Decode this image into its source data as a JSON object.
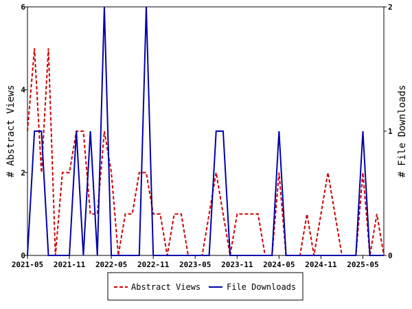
{
  "chart_data": {
    "type": "line",
    "x": [
      "2021-05",
      "2021-06",
      "2021-07",
      "2021-08",
      "2021-09",
      "2021-10",
      "2021-11",
      "2021-12",
      "2022-01",
      "2022-02",
      "2022-03",
      "2022-04",
      "2022-05",
      "2022-06",
      "2022-07",
      "2022-08",
      "2022-09",
      "2022-10",
      "2022-11",
      "2022-12",
      "2023-01",
      "2023-02",
      "2023-03",
      "2023-04",
      "2023-05",
      "2023-06",
      "2023-07",
      "2023-08",
      "2023-09",
      "2023-10",
      "2023-11",
      "2023-12",
      "2024-01",
      "2024-02",
      "2024-03",
      "2024-04",
      "2024-05",
      "2024-06",
      "2024-07",
      "2024-08",
      "2024-09",
      "2024-10",
      "2024-11",
      "2024-12",
      "2025-01",
      "2025-02",
      "2025-03",
      "2025-04",
      "2025-05",
      "2025-06",
      "2025-07",
      "2025-08"
    ],
    "x_ticks": [
      "2021-05",
      "2021-11",
      "2022-05",
      "2022-11",
      "2023-05",
      "2023-11",
      "2024-05",
      "2024-11",
      "2025-05"
    ],
    "ylabel": "# Abstract Views",
    "y2label": "# File Downloads",
    "ylim": [
      0,
      6
    ],
    "y2lim": [
      0,
      2
    ],
    "y_ticks": [
      "0",
      "2",
      "4",
      "6"
    ],
    "y2_ticks": [
      "0",
      "1",
      "2"
    ],
    "series": [
      {
        "name": "Abstract Views",
        "axis": "left",
        "color": "#cc0000",
        "style": "dashed",
        "values": [
          3,
          5,
          2,
          5,
          0,
          2,
          2,
          3,
          3,
          1,
          1,
          3,
          2,
          0,
          1,
          1,
          2,
          2,
          1,
          1,
          0,
          1,
          1,
          0,
          0,
          0,
          1,
          2,
          1,
          0,
          1,
          1,
          1,
          1,
          0,
          0,
          2,
          0,
          0,
          0,
          1,
          0,
          1,
          2,
          1,
          0,
          0,
          0,
          2,
          0,
          1,
          0
        ]
      },
      {
        "name": "File Downloads",
        "axis": "right",
        "color": "#0000aa",
        "style": "solid",
        "values": [
          0,
          1,
          1,
          0,
          0,
          0,
          0,
          1,
          0,
          1,
          0,
          2,
          0,
          0,
          0,
          0,
          0,
          2,
          0,
          0,
          0,
          0,
          0,
          0,
          0,
          0,
          0,
          1,
          1,
          0,
          0,
          0,
          0,
          0,
          0,
          0,
          1,
          0,
          0,
          0,
          0,
          0,
          0,
          0,
          0,
          0,
          0,
          0,
          1,
          0,
          0,
          0
        ]
      }
    ],
    "legend": {
      "placement": "bottom-center",
      "entries": [
        "Abstract Views",
        "File Downloads"
      ]
    }
  }
}
